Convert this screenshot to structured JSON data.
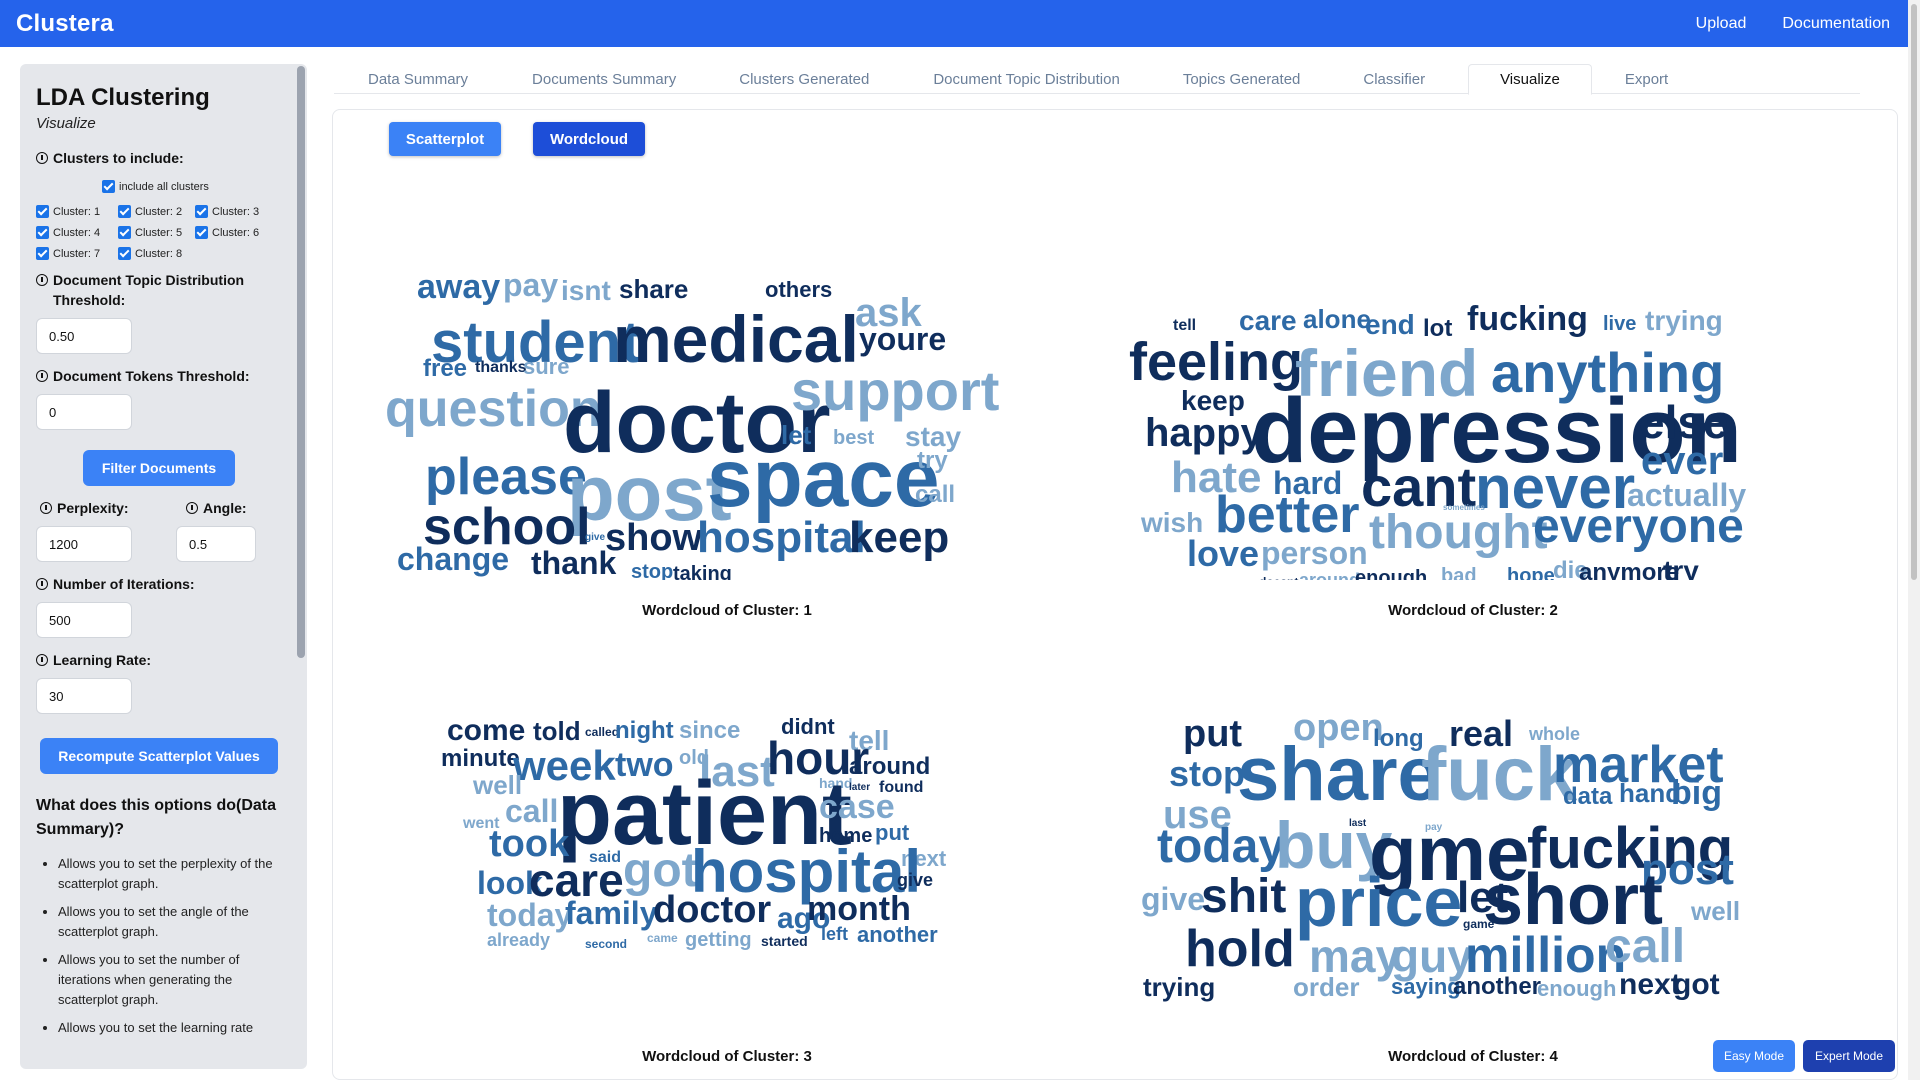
{
  "navbar": {
    "brand": "Clustera",
    "links": [
      "Upload",
      "Documentation"
    ]
  },
  "sidebar": {
    "title": "LDA Clustering",
    "subtitle": "Visualize",
    "clusters_label": "Clusters to include:",
    "include_all_label": "include all clusters",
    "clusters": [
      "Cluster: 1",
      "Cluster: 2",
      "Cluster: 3",
      "Cluster: 4",
      "Cluster: 5",
      "Cluster: 6",
      "Cluster: 7",
      "Cluster: 8"
    ],
    "doc_topic_label": "Document Topic Distribution Threshold:",
    "doc_topic_value": "0.50",
    "doc_tokens_label": "Document Tokens Threshold:",
    "doc_tokens_value": "0",
    "filter_button": "Filter Documents",
    "perplexity_label": "Perplexity:",
    "perplexity_value": "1200",
    "angle_label": "Angle:",
    "angle_value": "0.5",
    "iterations_label": "Number of Iterations:",
    "iterations_value": "500",
    "learning_rate_label": "Learning Rate:",
    "learning_rate_value": "30",
    "recompute_button": "Recompute Scatterplot Values",
    "help_title": "What does this options do(Data Summary)?",
    "help_items": [
      "Allows you to set the perplexity of the scatterplot graph.",
      "Allows you to set the angle of the scatterplot graph.",
      "Allows you to set the number of iterations when generating the scatterplot graph.",
      "Allows you to set the learning rate"
    ]
  },
  "tabs": [
    "Data Summary",
    "Documents Summary",
    "Clusters Generated",
    "Document Topic Distribution",
    "Topics Generated",
    "Classifier",
    "Visualize",
    "Export"
  ],
  "active_tab": "Visualize",
  "viz_buttons": {
    "scatterplot": "Scatterplot",
    "wordcloud": "Wordcloud"
  },
  "colors": {
    "navbar": "#2563eb",
    "dark_navy": "#0f2d5c",
    "mid_blue": "#2e6aa6",
    "light_blue": "#7ea7cc",
    "button_blue": "#3b82f6",
    "button_dark": "#1d4ed8"
  },
  "wordclouds": [
    {
      "caption": "Wordcloud of Cluster: 1",
      "words": [
        "away",
        "pay",
        "isnt",
        "share",
        "others",
        "student",
        "medical",
        "ask",
        "youre",
        "free",
        "thanks",
        "sure",
        "question",
        "doctor",
        "support",
        "let",
        "best",
        "stay",
        "please",
        "post",
        "space",
        "try",
        "school",
        "call",
        "show",
        "hospital",
        "keep",
        "give",
        "change",
        "thank",
        "stop",
        "taking"
      ]
    },
    {
      "caption": "Wordcloud of Cluster: 2",
      "words": [
        "tell",
        "care",
        "alone",
        "end",
        "lot",
        "fucking",
        "live",
        "trying",
        "feeling",
        "friend",
        "anything",
        "keep",
        "happy",
        "depression",
        "else",
        "ever",
        "hate",
        "hard",
        "cant",
        "never",
        "actually",
        "wish",
        "better",
        "sometimes",
        "thought",
        "everyone",
        "love",
        "person",
        "doesnt",
        "around",
        "enough",
        "bad",
        "hope",
        "die",
        "anymore",
        "try"
      ]
    },
    {
      "caption": "Wordcloud of Cluster: 3",
      "words": [
        "come",
        "told",
        "called",
        "night",
        "since",
        "didnt",
        "tell",
        "minute",
        "week",
        "two",
        "old",
        "last",
        "hour",
        "around",
        "well",
        "hand",
        "later",
        "found",
        "call",
        "patient",
        "case",
        "went",
        "home",
        "put",
        "said",
        "took",
        "next",
        "look",
        "care",
        "got",
        "hospital",
        "give",
        "today",
        "family",
        "doctor",
        "ago",
        "month",
        "already",
        "second",
        "came",
        "getting",
        "started",
        "left",
        "another"
      ]
    },
    {
      "caption": "Wordcloud of Cluster: 4",
      "words": [
        "put",
        "open",
        "long",
        "real",
        "whole",
        "stop",
        "share",
        "fuck",
        "market",
        "data",
        "hand",
        "big",
        "use",
        "last",
        "today",
        "buy",
        "gme",
        "fucking",
        "pay",
        "post",
        "give",
        "shit",
        "price",
        "let",
        "game",
        "short",
        "well",
        "hold",
        "may",
        "guy",
        "million",
        "call",
        "trying",
        "order",
        "saying",
        "another",
        "enough",
        "next",
        "got"
      ]
    }
  ],
  "mode_buttons": {
    "easy": "Easy Mode",
    "expert": "Expert Mode"
  }
}
